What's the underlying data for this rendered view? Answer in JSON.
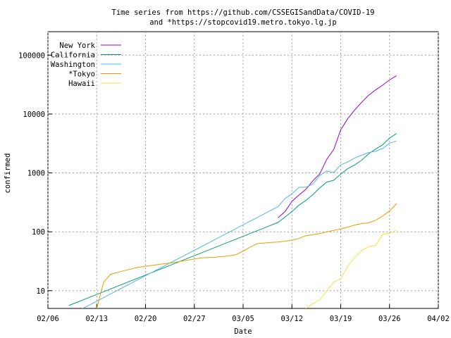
{
  "chart_data": {
    "type": "line",
    "title": [
      "Time series from https://github.com/CSSEGISandData/COVID-19",
      "and *https://stopcovid19.metro.tokyo.lg.jp"
    ],
    "xlabel": "Date",
    "ylabel": "confirmed",
    "logscale": true,
    "grid": true,
    "legend": "top-left",
    "xlim": [
      "02/06",
      "04/02"
    ],
    "xticks": [
      "02/06",
      "02/13",
      "02/20",
      "02/27",
      "03/05",
      "03/12",
      "03/19",
      "03/26",
      "04/02"
    ],
    "ylim": [
      5,
      250000
    ],
    "yticks": [
      10,
      100,
      1000,
      10000,
      100000
    ],
    "series": [
      {
        "name": "New York",
        "color": "#9400d3",
        "x": [
          "03/10",
          "03/11",
          "03/12",
          "03/13",
          "03/14",
          "03/15",
          "03/16",
          "03/17",
          "03/18",
          "03/19",
          "03/20",
          "03/21",
          "03/22",
          "03/23",
          "03/24",
          "03/25",
          "03/26",
          "03/27"
        ],
        "values": [
          173,
          220,
          328,
          421,
          525,
          732,
          967,
          1706,
          2495,
          5365,
          8310,
          11710,
          15793,
          20884,
          25681,
          30841,
          37877,
          44635
        ]
      },
      {
        "name": "California",
        "color": "#009e73",
        "x": [
          "02/09",
          "03/10",
          "03/11",
          "03/12",
          "03/13",
          "03/14",
          "03/15",
          "03/16",
          "03/17",
          "03/18",
          "03/19",
          "03/20",
          "03/21",
          "03/22",
          "03/23",
          "03/24",
          "03/25",
          "03/26",
          "03/27"
        ],
        "values": [
          5.6,
          144,
          177,
          221,
          282,
          340,
          426,
          557,
          698,
          751,
          952,
          1177,
          1364,
          1642,
          2108,
          2538,
          2998,
          3899,
          4657
        ]
      },
      {
        "name": "Washington",
        "color": "#56b4e9",
        "x": [
          "02/11",
          "03/10",
          "03/11",
          "03/12",
          "03/13",
          "03/14",
          "03/15",
          "03/16",
          "03/17",
          "03/18",
          "03/19",
          "03/20",
          "03/21",
          "03/22",
          "03/23",
          "03/24",
          "03/25",
          "03/26",
          "03/27"
        ],
        "values": [
          5,
          267,
          366,
          442,
          568,
          572,
          643,
          904,
          1076,
          1014,
          1376,
          1524,
          1793,
          1996,
          2221,
          2328,
          2591,
          3207,
          3477
        ]
      },
      {
        "name": "*Tokyo",
        "color": "#e69f00",
        "x": [
          "02/13",
          "02/14",
          "02/15",
          "02/17",
          "02/19",
          "02/20",
          "02/22",
          "02/24",
          "02/26",
          "02/28",
          "03/01",
          "03/03",
          "03/04",
          "03/05",
          "03/06",
          "03/07",
          "03/09",
          "03/10",
          "03/12",
          "03/13",
          "03/14",
          "03/16",
          "03/17",
          "03/19",
          "03/20",
          "03/21",
          "03/22",
          "03/23",
          "03/24",
          "03/25",
          "03/26",
          "03/27"
        ],
        "values": [
          5,
          14,
          19,
          22,
          25,
          26,
          28,
          30,
          33,
          36,
          37,
          39,
          41,
          47,
          55,
          63,
          66,
          67,
          72,
          77,
          86,
          93,
          100,
          112,
          120,
          130,
          138,
          142,
          157,
          185,
          226,
          299
        ]
      },
      {
        "name": "Hawaii",
        "color": "#f0e442",
        "x": [
          "03/14",
          "03/15",
          "03/16",
          "03/17",
          "03/18",
          "03/19",
          "03/20",
          "03/21",
          "03/22",
          "03/23",
          "03/24",
          "03/25",
          "03/26",
          "03/27"
        ],
        "values": [
          5,
          6,
          7,
          10,
          14,
          16,
          26,
          37,
          48,
          56,
          59,
          90,
          95,
          106
        ]
      }
    ]
  }
}
